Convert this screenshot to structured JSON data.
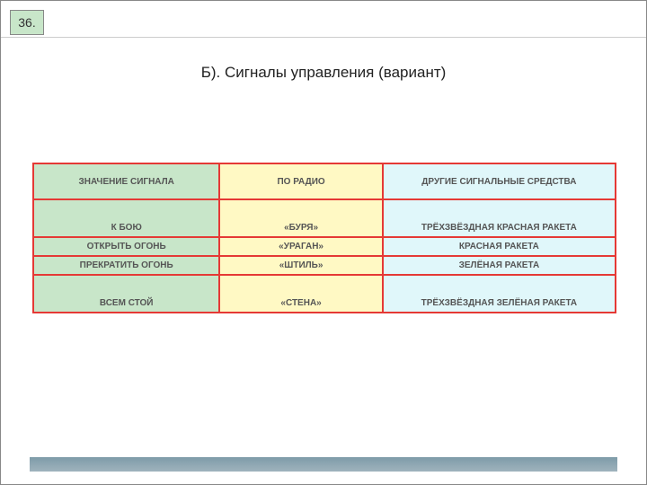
{
  "page_number": "36.",
  "title": "Б). Сигналы управления (вариант)",
  "table": {
    "columns": [
      "ЗНАЧЕНИЕ СИГНАЛА",
      "ПО РАДИО",
      "ДРУГИЕ СИГНАЛЬНЫЕ СРЕДСТВА"
    ],
    "column_colors": [
      "#c8e6c9",
      "#fff9c4",
      "#e0f7fa"
    ],
    "border_color": "#e53935",
    "rows": [
      [
        "К БОЮ",
        "«БУРЯ»",
        "ТРЁХЗВЁЗДНАЯ КРАСНАЯ РАКЕТА"
      ],
      [
        "ОТКРЫТЬ ОГОНЬ",
        "«УРАГАН»",
        "КРАСНАЯ РАКЕТА"
      ],
      [
        "ПРЕКРАТИТЬ ОГОНЬ",
        "«ШТИЛЬ»",
        "ЗЕЛЁНАЯ РАКЕТА"
      ],
      [
        "ВСЕМ СТОЙ",
        "«СТЕНА»",
        "ТРЁХЗВЁЗДНАЯ ЗЕЛЁНАЯ РАКЕТА"
      ]
    ],
    "row_heights": [
      "tall",
      "short",
      "short",
      "tall"
    ]
  },
  "style": {
    "page_bg": "#ffffff",
    "page_number_bg": "#c8e6c9",
    "title_fontsize": 17,
    "cell_fontsize": 10,
    "bottom_bar_color": "#7e9ba8"
  }
}
